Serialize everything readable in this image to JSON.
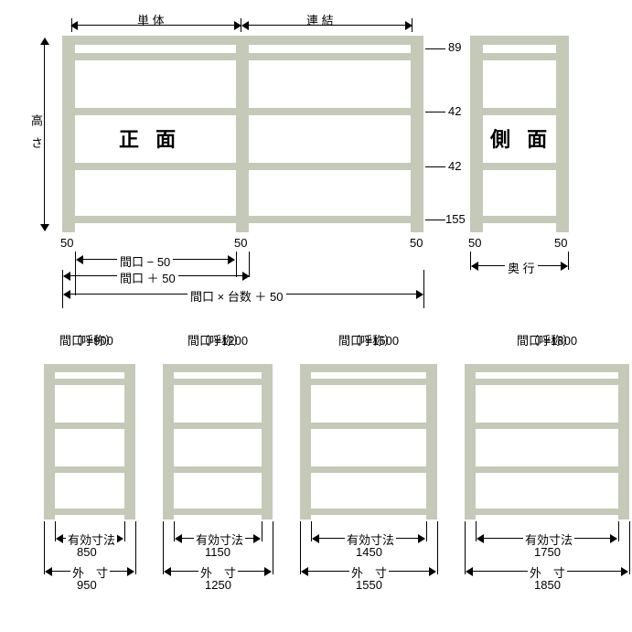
{
  "top": {
    "standalone_label": "単 体",
    "joined_label": "連 結",
    "front_label": "正 面",
    "side_label": "側 面",
    "height_label": "高 さ",
    "depth_label": "奥 行",
    "dim_89": "89",
    "dim_42a": "42",
    "dim_42b": "42",
    "dim_155": "155",
    "post_50_left": "50",
    "post_50_mid": "50",
    "post_50_right": "50",
    "side_50_left": "50",
    "side_50_right": "50",
    "opening_minus": "間口 − 50",
    "opening_plus": "間口 ＋ 50",
    "opening_total": "間口 × 台数 ＋ 50"
  },
  "bottom": {
    "nominal_label": "（呼称）",
    "eff_label": "有効寸法",
    "outer_label": "外　寸",
    "units": [
      {
        "opening": "間口 =900",
        "eff": "850",
        "outer": "950",
        "w": 100
      },
      {
        "opening": "間口 =1200",
        "eff": "1150",
        "outer": "1250",
        "w": 120
      },
      {
        "opening": "間口 =1500",
        "eff": "1450",
        "outer": "1550",
        "w": 150
      },
      {
        "opening": "間口 =1800",
        "eff": "1750",
        "outer": "1850",
        "w": 180
      }
    ]
  },
  "colors": {
    "shelf": "#c5c9b8",
    "line": "#000000",
    "bg": "#ffffff"
  }
}
